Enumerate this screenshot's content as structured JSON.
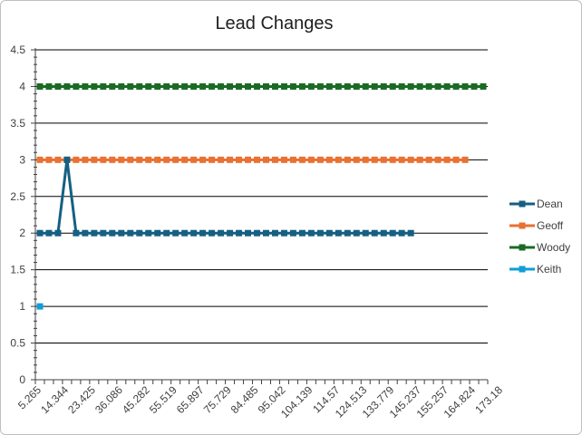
{
  "chart_data": {
    "type": "line",
    "title": "Lead Changes",
    "xlabel": "",
    "ylabel": "",
    "ylim": [
      0,
      4.5
    ],
    "y_ticks": [
      "0",
      "0.5",
      "1",
      "1.5",
      "2",
      "2.5",
      "3",
      "3.5",
      "4",
      "4.5"
    ],
    "x_tick_labels": [
      "5.265",
      "14.344",
      "23.425",
      "36.086",
      "45.282",
      "55.519",
      "65.897",
      "75.729",
      "84.485",
      "95.042",
      "104.139",
      "114.57",
      "124.513",
      "133.779",
      "145.237",
      "155.257",
      "164.824",
      "173.18"
    ],
    "category_count": 50,
    "grid": "horizontal",
    "legend_position": "right",
    "series": [
      {
        "name": "Dean",
        "color": "#156082",
        "values": [
          2,
          2,
          2,
          3,
          2,
          2,
          2,
          2,
          2,
          2,
          2,
          2,
          2,
          2,
          2,
          2,
          2,
          2,
          2,
          2,
          2,
          2,
          2,
          2,
          2,
          2,
          2,
          2,
          2,
          2,
          2,
          2,
          2,
          2,
          2,
          2,
          2,
          2,
          2,
          2,
          2,
          2
        ]
      },
      {
        "name": "Geoff",
        "color": "#E97132",
        "values": [
          3,
          3,
          3,
          3,
          3,
          3,
          3,
          3,
          3,
          3,
          3,
          3,
          3,
          3,
          3,
          3,
          3,
          3,
          3,
          3,
          3,
          3,
          3,
          3,
          3,
          3,
          3,
          3,
          3,
          3,
          3,
          3,
          3,
          3,
          3,
          3,
          3,
          3,
          3,
          3,
          3,
          3,
          3,
          3,
          3,
          3,
          3,
          3
        ]
      },
      {
        "name": "Woody",
        "color": "#196B24",
        "values": [
          4,
          4,
          4,
          4,
          4,
          4,
          4,
          4,
          4,
          4,
          4,
          4,
          4,
          4,
          4,
          4,
          4,
          4,
          4,
          4,
          4,
          4,
          4,
          4,
          4,
          4,
          4,
          4,
          4,
          4,
          4,
          4,
          4,
          4,
          4,
          4,
          4,
          4,
          4,
          4,
          4,
          4,
          4,
          4,
          4,
          4,
          4,
          4,
          4,
          4
        ]
      },
      {
        "name": "Keith",
        "color": "#0F9ED5",
        "values": [
          1
        ]
      }
    ]
  }
}
